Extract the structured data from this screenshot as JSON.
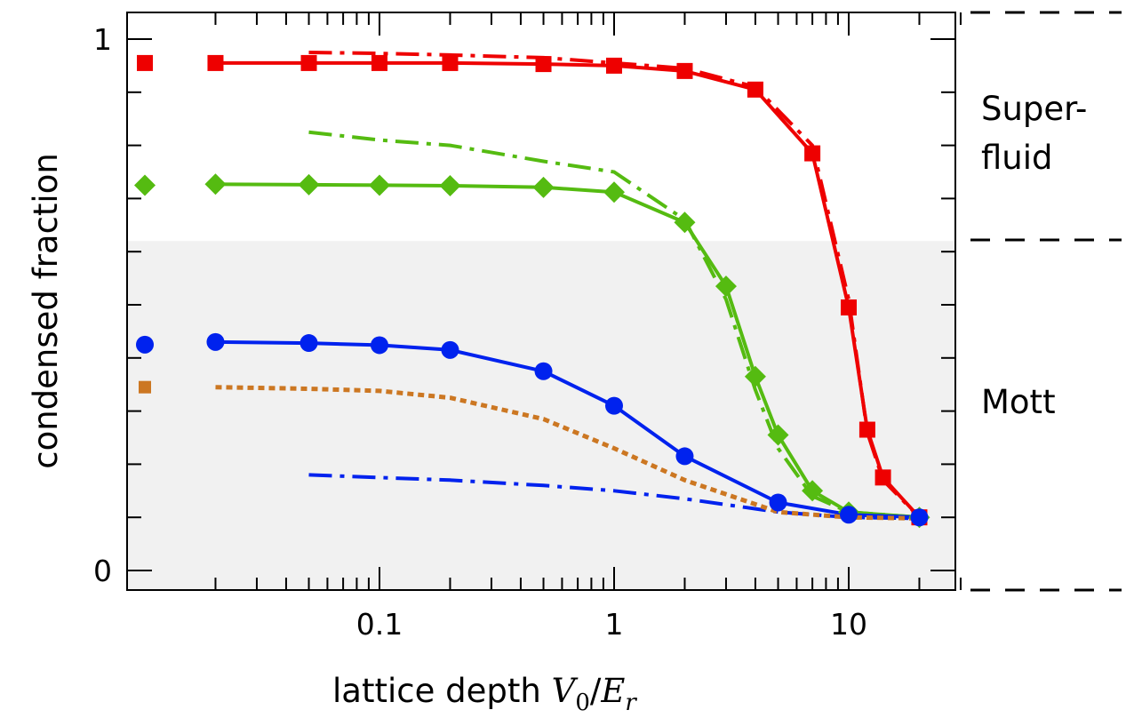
{
  "chart_data": {
    "type": "line",
    "title": "",
    "xlabel": "lattice depth",
    "xlabel_math": {
      "V": "V",
      "sub0": "0",
      "slash": "/",
      "E": "E",
      "subr": "r"
    },
    "ylabel": "condensed fraction",
    "x_scale": "log",
    "xlim": [
      0.01,
      30
    ],
    "ylim": [
      -0.04,
      1.04
    ],
    "x_ticks": [
      {
        "value": 0.1,
        "label": "0.1"
      },
      {
        "value": 1,
        "label": "1"
      },
      {
        "value": 10,
        "label": "10"
      }
    ],
    "y_ticks": [
      {
        "value": 0,
        "label": "0"
      },
      {
        "value": 1,
        "label": "1"
      }
    ],
    "y_minor_ticks": [
      0.1,
      0.2,
      0.3,
      0.4,
      0.5,
      0.6,
      0.7,
      0.8,
      0.9
    ],
    "mott_region_upper": 0.62,
    "region_labels": {
      "superfluid_line1": "Super-",
      "superfluid_line2": "fluid",
      "mott": "Mott"
    },
    "series": [
      {
        "color": "#ee0000",
        "marker": "square",
        "style": "solid",
        "x": [
          0.01,
          0.02,
          0.05,
          0.1,
          0.2,
          0.5,
          1,
          2,
          4,
          7,
          10,
          12,
          14,
          20
        ],
        "y": [
          0.955,
          0.955,
          0.955,
          0.955,
          0.955,
          0.953,
          0.95,
          0.94,
          0.905,
          0.785,
          0.495,
          0.265,
          0.175,
          0.1
        ]
      },
      {
        "color": "#ee0000",
        "style": "dashdot",
        "x": [
          0.05,
          0.1,
          0.2,
          0.5,
          1,
          2,
          4,
          7,
          10,
          12,
          14,
          20
        ],
        "y": [
          0.975,
          0.973,
          0.97,
          0.965,
          0.955,
          0.945,
          0.91,
          0.8,
          0.51,
          0.26,
          0.17,
          0.1
        ]
      },
      {
        "color": "#55bb11",
        "marker": "diamond",
        "style": "solid",
        "x": [
          0.01,
          0.02,
          0.05,
          0.1,
          0.2,
          0.5,
          1,
          2,
          3,
          4,
          5,
          7,
          10,
          20
        ],
        "y": [
          0.725,
          0.727,
          0.726,
          0.725,
          0.724,
          0.721,
          0.712,
          0.655,
          0.535,
          0.365,
          0.255,
          0.15,
          0.11,
          0.1
        ]
      },
      {
        "color": "#55bb11",
        "style": "dashdot",
        "x": [
          0.05,
          0.1,
          0.2,
          0.5,
          1,
          2,
          3,
          4,
          5,
          7,
          10,
          20
        ],
        "y": [
          0.825,
          0.81,
          0.8,
          0.77,
          0.75,
          0.66,
          0.51,
          0.34,
          0.23,
          0.14,
          0.11,
          0.1
        ]
      },
      {
        "color": "#0022ee",
        "marker": "circle",
        "style": "solid",
        "x": [
          0.01,
          0.02,
          0.05,
          0.1,
          0.2,
          0.5,
          1,
          2,
          5,
          10,
          20
        ],
        "y": [
          0.425,
          0.43,
          0.428,
          0.424,
          0.415,
          0.375,
          0.31,
          0.215,
          0.128,
          0.105,
          0.1
        ]
      },
      {
        "color": "#0022ee",
        "style": "dashdot",
        "x": [
          0.05,
          0.1,
          0.2,
          0.5,
          1,
          2,
          5,
          10,
          20
        ],
        "y": [
          0.18,
          0.175,
          0.17,
          0.16,
          0.15,
          0.135,
          0.11,
          0.1,
          0.098
        ]
      },
      {
        "color": "#cc7722",
        "marker": "square-end",
        "style": "dotted",
        "x": [
          0.01,
          0.02,
          0.05,
          0.1,
          0.2,
          0.5,
          1,
          2,
          5,
          10,
          20
        ],
        "y": [
          0.345,
          0.345,
          0.342,
          0.338,
          0.325,
          0.285,
          0.23,
          0.17,
          0.11,
          0.1,
          0.098
        ]
      }
    ]
  }
}
